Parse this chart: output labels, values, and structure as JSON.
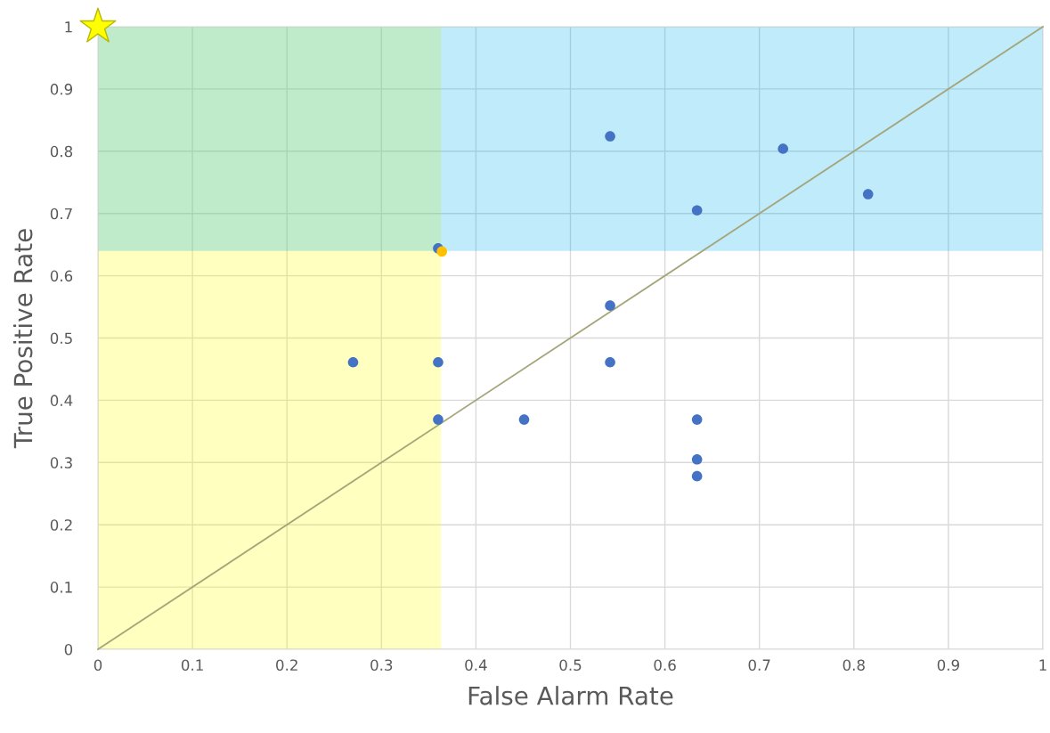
{
  "chart_data": {
    "type": "scatter",
    "xlabel": "False Alarm Rate",
    "ylabel": "True Positive Rate",
    "xlim": [
      0,
      1
    ],
    "ylim": [
      0,
      1
    ],
    "xticks": [
      0,
      0.1,
      0.2,
      0.3,
      0.4,
      0.5,
      0.6,
      0.7,
      0.8,
      0.9,
      1
    ],
    "yticks": [
      0,
      0.1,
      0.2,
      0.3,
      0.4,
      0.5,
      0.6,
      0.7,
      0.8,
      0.9,
      1
    ],
    "grid": true,
    "marker": "circle",
    "bands": [
      {
        "axis": "x",
        "from": 0,
        "to": 0.363,
        "color": "#ffff00"
      },
      {
        "axis": "y",
        "from": 0.64,
        "to": 1,
        "color": "#00b0f0"
      }
    ],
    "series": [
      {
        "type": "line",
        "color": "#a5a57a",
        "marker": "none",
        "x": [
          0,
          1
        ],
        "values": [
          0,
          1
        ]
      },
      {
        "color": "#4472c4",
        "x": [
          0.542,
          0.725,
          0.815,
          0.634,
          0.36,
          0.542,
          0.27,
          0.36,
          0.542,
          0.36,
          0.451,
          0.634,
          0.634,
          0.634
        ],
        "values": [
          0.824,
          0.804,
          0.731,
          0.705,
          0.644,
          0.552,
          0.461,
          0.461,
          0.461,
          0.369,
          0.369,
          0.369,
          0.305,
          0.278
        ]
      },
      {
        "color": "#ffc000",
        "x": [
          0.364
        ],
        "values": [
          0.639
        ]
      },
      {
        "color": "#ffff00",
        "marker": "star",
        "x": [
          0
        ],
        "values": [
          1
        ]
      }
    ]
  }
}
